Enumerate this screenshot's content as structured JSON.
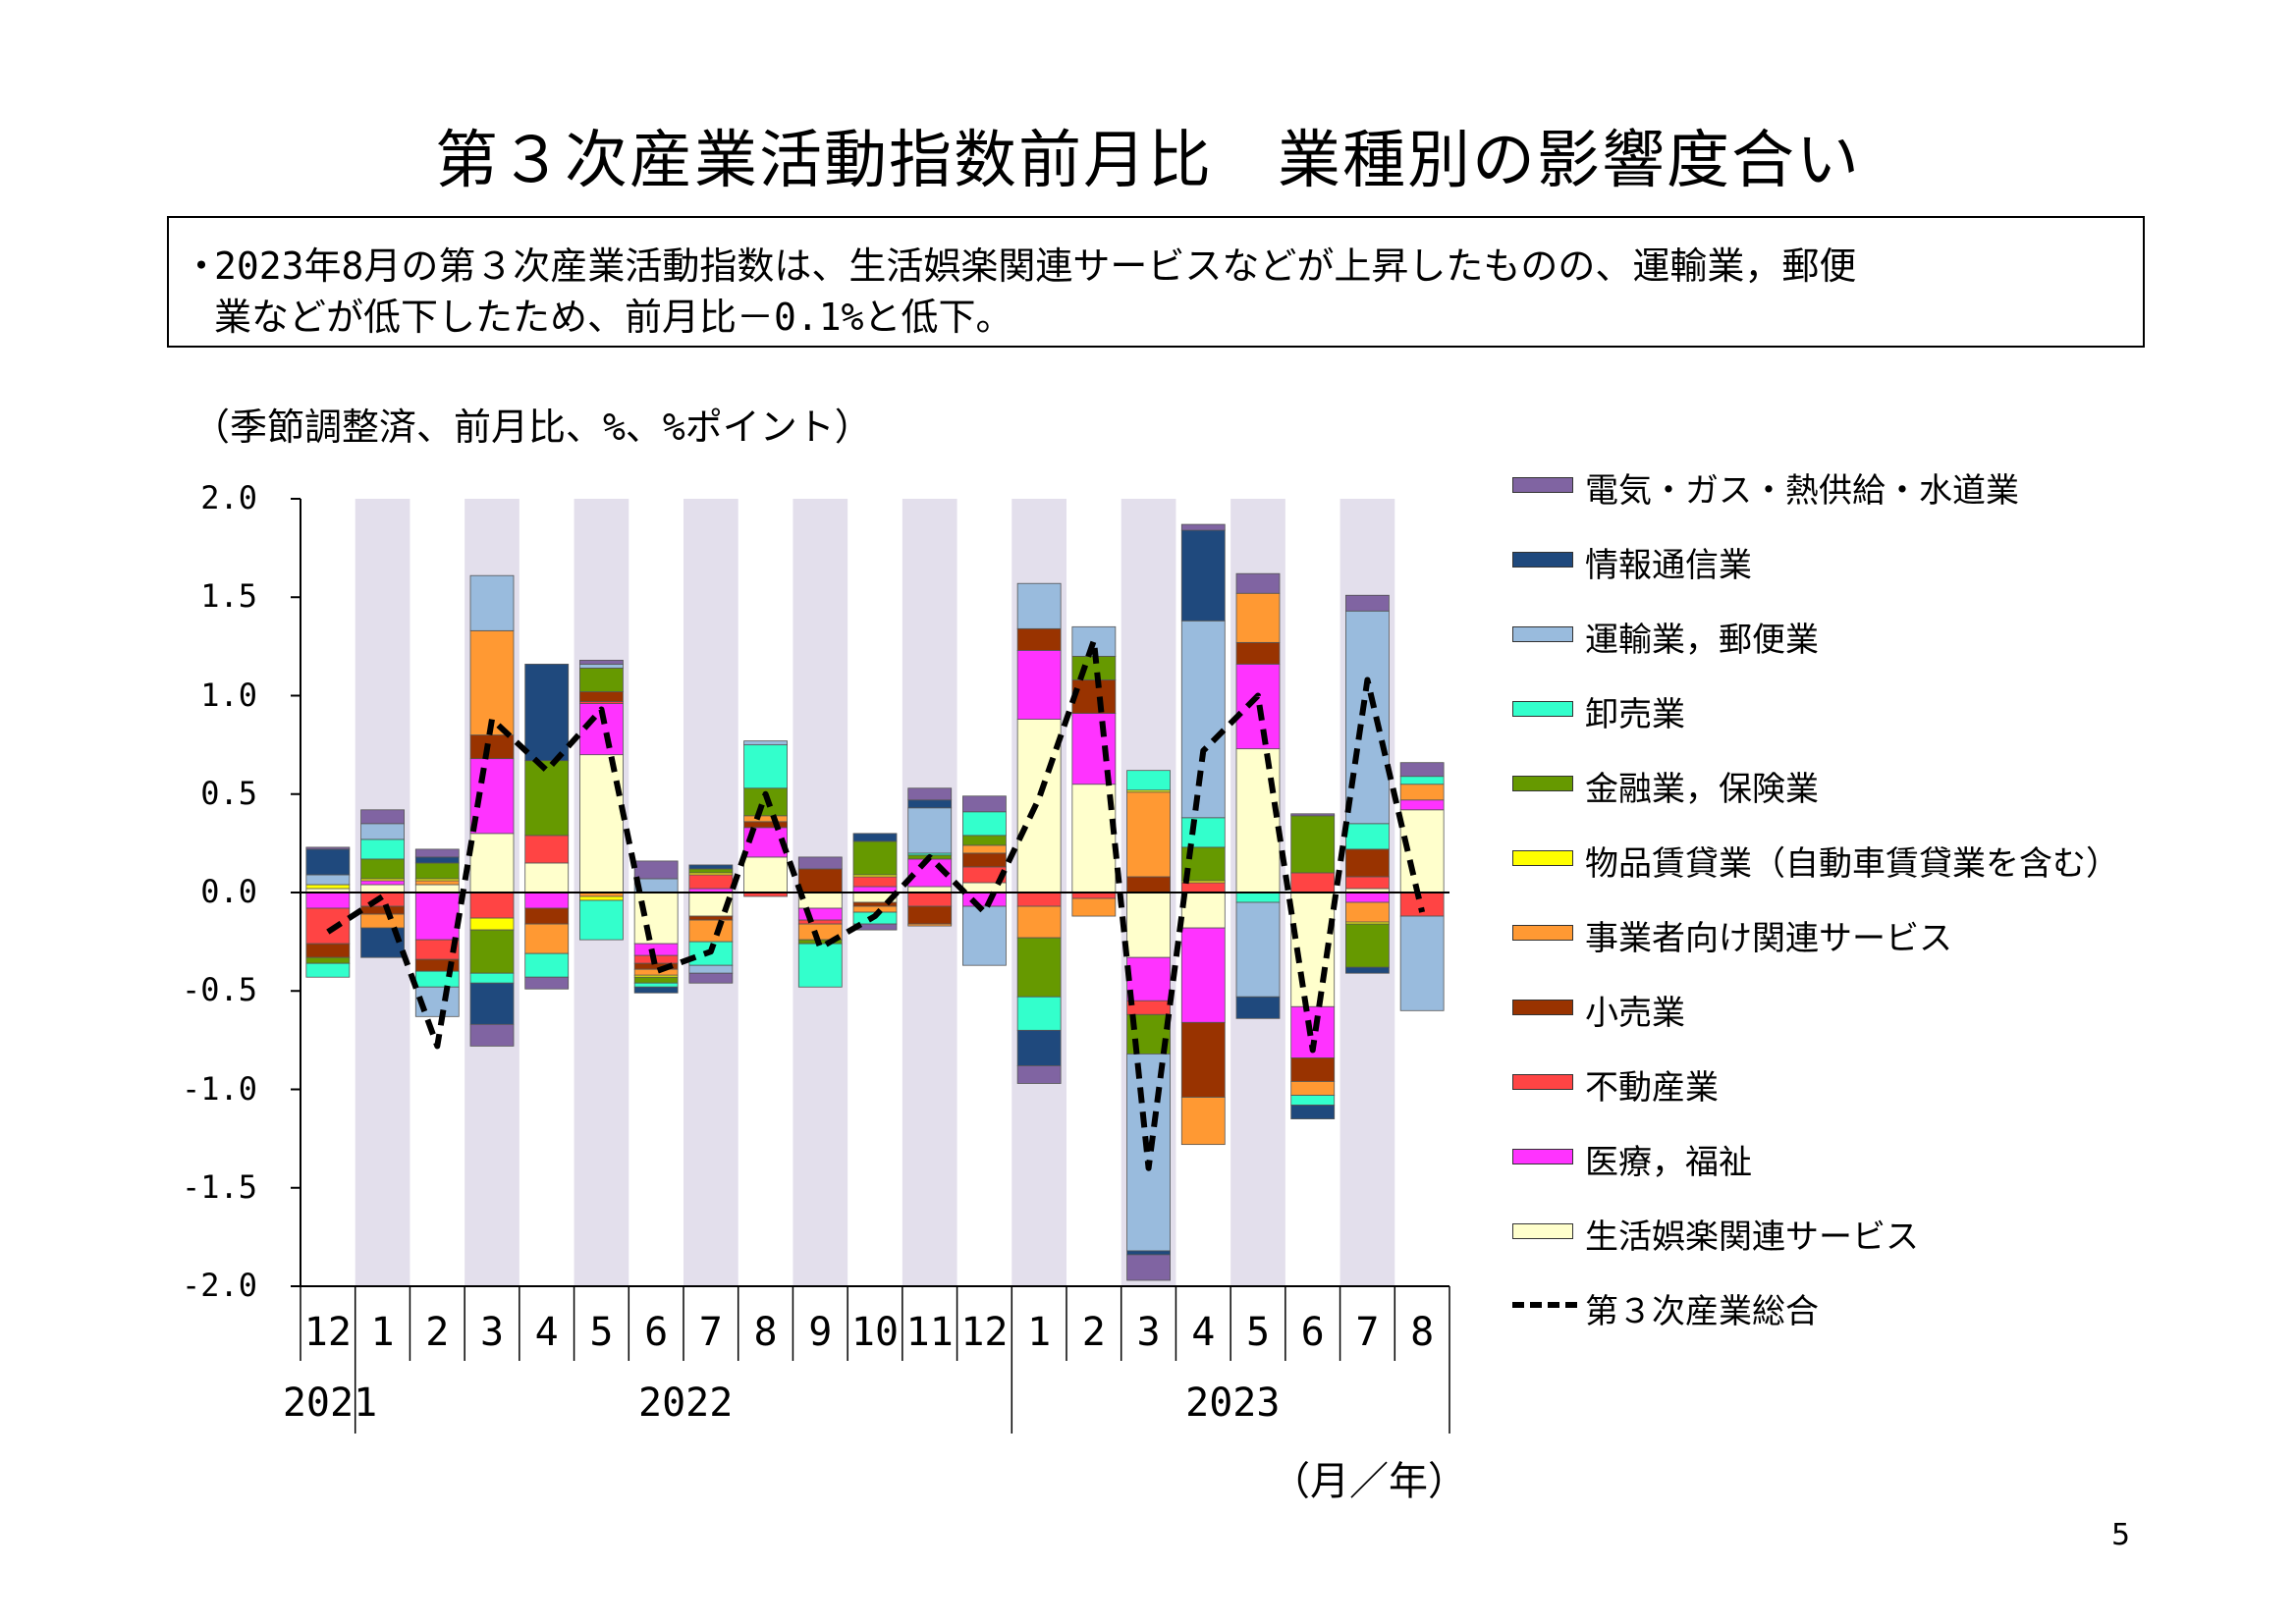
{
  "title": "第３次産業活動指数前月比　業種別の影響度合い",
  "summary": {
    "bullet": "・",
    "line1": "2023年8月の第３次産業活動指数は、生活娯楽関連サービスなどが上昇したものの、運輸業，郵便",
    "line2": "業などが低下したため、前月比－0.1%と低下。"
  },
  "page_number": "5",
  "chart_data": {
    "type": "bar",
    "stacked": true,
    "title": "",
    "ylabel": "（季節調整済、前月比、%、%ポイント）",
    "xlabel": "（月／年）",
    "ylim": [
      -2.0,
      2.0
    ],
    "yticks": [
      "2.0",
      "1.5",
      "1.0",
      "0.5",
      "0.0",
      "-0.5",
      "-1.0",
      "-1.5",
      "-2.0"
    ],
    "ytick_values": [
      2.0,
      1.5,
      1.0,
      0.5,
      0.0,
      -0.5,
      -1.0,
      -1.5,
      -2.0
    ],
    "categories": [
      "12",
      "1",
      "2",
      "3",
      "4",
      "5",
      "6",
      "7",
      "8",
      "9",
      "10",
      "11",
      "12",
      "1",
      "2",
      "3",
      "4",
      "5",
      "6",
      "7",
      "8"
    ],
    "year_labels": [
      {
        "label": "2021",
        "index": 0
      },
      {
        "label": "2022",
        "index": 6.5
      },
      {
        "label": "2023",
        "index": 16.5
      }
    ],
    "shaded_indices": [
      1,
      3,
      5,
      7,
      9,
      11,
      13,
      15,
      17,
      19
    ],
    "legend_position": "right",
    "series": [
      {
        "name": "生活娯楽関連サービス",
        "color": "#FFFFCC",
        "values": [
          0.02,
          0.04,
          0.04,
          0.3,
          0.15,
          0.7,
          -0.26,
          -0.12,
          0.18,
          -0.08,
          -0.05,
          0.03,
          0.05,
          0.88,
          0.55,
          -0.33,
          -0.18,
          0.73,
          -0.58,
          0.02,
          0.42
        ]
      },
      {
        "name": "医療，福祉",
        "color": "#FF33FF",
        "values": [
          -0.08,
          0.02,
          -0.24,
          0.38,
          -0.08,
          0.26,
          -0.06,
          0.02,
          0.15,
          -0.06,
          0.03,
          0.14,
          -0.07,
          0.35,
          0.36,
          -0.22,
          -0.48,
          0.43,
          -0.26,
          -0.05,
          0.05
        ]
      },
      {
        "name": "不動産業",
        "color": "#FF4444",
        "values": [
          -0.18,
          -0.07,
          -0.1,
          -0.13,
          0.14,
          0.01,
          -0.04,
          0.07,
          -0.02,
          -0.02,
          0.05,
          -0.07,
          0.08,
          -0.07,
          -0.03,
          -0.07,
          0.05,
          0.0,
          0.1,
          0.06,
          -0.12
        ]
      },
      {
        "name": "小売業",
        "color": "#993300",
        "values": [
          -0.07,
          -0.04,
          -0.06,
          0.12,
          -0.08,
          0.05,
          -0.03,
          -0.02,
          0.03,
          0.12,
          -0.02,
          -0.09,
          0.07,
          0.11,
          0.17,
          0.08,
          -0.38,
          0.11,
          -0.12,
          0.14,
          0.0
        ]
      },
      {
        "name": "事業者向け関連サービス",
        "color": "#FF9933",
        "values": [
          0.0,
          -0.07,
          0.02,
          0.53,
          -0.15,
          -0.02,
          -0.03,
          -0.11,
          0.03,
          -0.08,
          -0.03,
          -0.01,
          0.04,
          -0.16,
          -0.09,
          0.43,
          -0.24,
          0.25,
          -0.07,
          -0.1,
          0.08
        ]
      },
      {
        "name": "物品賃貸業（自動車賃貸業を含む）",
        "color": "#FFFF00",
        "values": [
          0.02,
          0.01,
          0.01,
          -0.06,
          0.0,
          -0.02,
          -0.01,
          0.01,
          0.0,
          0.0,
          0.01,
          0.0,
          0.0,
          0.0,
          0.0,
          0.01,
          0.01,
          0.0,
          0.0,
          -0.01,
          0.0
        ]
      },
      {
        "name": "金融業，保険業",
        "color": "#669900",
        "values": [
          -0.03,
          0.1,
          0.08,
          -0.22,
          0.38,
          0.12,
          -0.03,
          0.02,
          0.14,
          -0.02,
          0.17,
          0.02,
          0.05,
          -0.3,
          0.12,
          -0.2,
          0.17,
          0.0,
          0.29,
          -0.22,
          0.0
        ]
      },
      {
        "name": "卸売業",
        "color": "#33FFCC",
        "values": [
          -0.07,
          0.1,
          -0.08,
          -0.05,
          -0.12,
          -0.2,
          -0.02,
          -0.12,
          0.22,
          -0.22,
          -0.06,
          0.01,
          0.12,
          -0.17,
          0.0,
          0.1,
          0.15,
          -0.05,
          -0.05,
          0.13,
          0.04
        ]
      },
      {
        "name": "運輸業，郵便業",
        "color": "#99BBDD",
        "values": [
          0.05,
          0.08,
          -0.15,
          0.28,
          0.0,
          0.02,
          0.07,
          -0.04,
          0.02,
          0.0,
          0.0,
          0.23,
          -0.3,
          0.23,
          0.15,
          -1.0,
          1.0,
          -0.48,
          0.0,
          1.08,
          -0.48
        ]
      },
      {
        "name": "情報通信業",
        "color": "#1F497D",
        "values": [
          0.13,
          -0.15,
          0.03,
          -0.21,
          0.49,
          0.0,
          -0.03,
          0.02,
          0.0,
          0.0,
          0.04,
          0.04,
          0.0,
          -0.18,
          0.0,
          -0.02,
          0.46,
          -0.11,
          -0.07,
          -0.03,
          0.0
        ]
      },
      {
        "name": "電気・ガス・熱供給・水道業",
        "color": "#8064A2",
        "values": [
          0.01,
          0.07,
          0.04,
          -0.11,
          -0.06,
          0.02,
          0.09,
          -0.05,
          0.0,
          0.06,
          -0.03,
          0.06,
          0.08,
          -0.09,
          0.0,
          -0.13,
          0.03,
          0.1,
          0.01,
          0.08,
          0.07
        ]
      }
    ],
    "total_line": {
      "name": "第３次産業総合",
      "color": "#000000",
      "style": "dashed",
      "values": [
        -0.2,
        -0.02,
        -0.78,
        0.88,
        0.62,
        0.93,
        -0.4,
        -0.3,
        0.5,
        -0.28,
        -0.12,
        0.18,
        -0.1,
        0.48,
        1.28,
        -1.4,
        0.72,
        1.0,
        -0.8,
        1.08,
        -0.1
      ]
    },
    "legend": [
      "電気・ガス・熱供給・水道業",
      "情報通信業",
      "運輸業，郵便業",
      "卸売業",
      "金融業，保険業",
      "物品賃貸業（自動車賃貸業を含む）",
      "事業者向け関連サービス",
      "小売業",
      "不動産業",
      "医療，福祉",
      "生活娯楽関連サービス",
      "第３次産業総合"
    ]
  }
}
